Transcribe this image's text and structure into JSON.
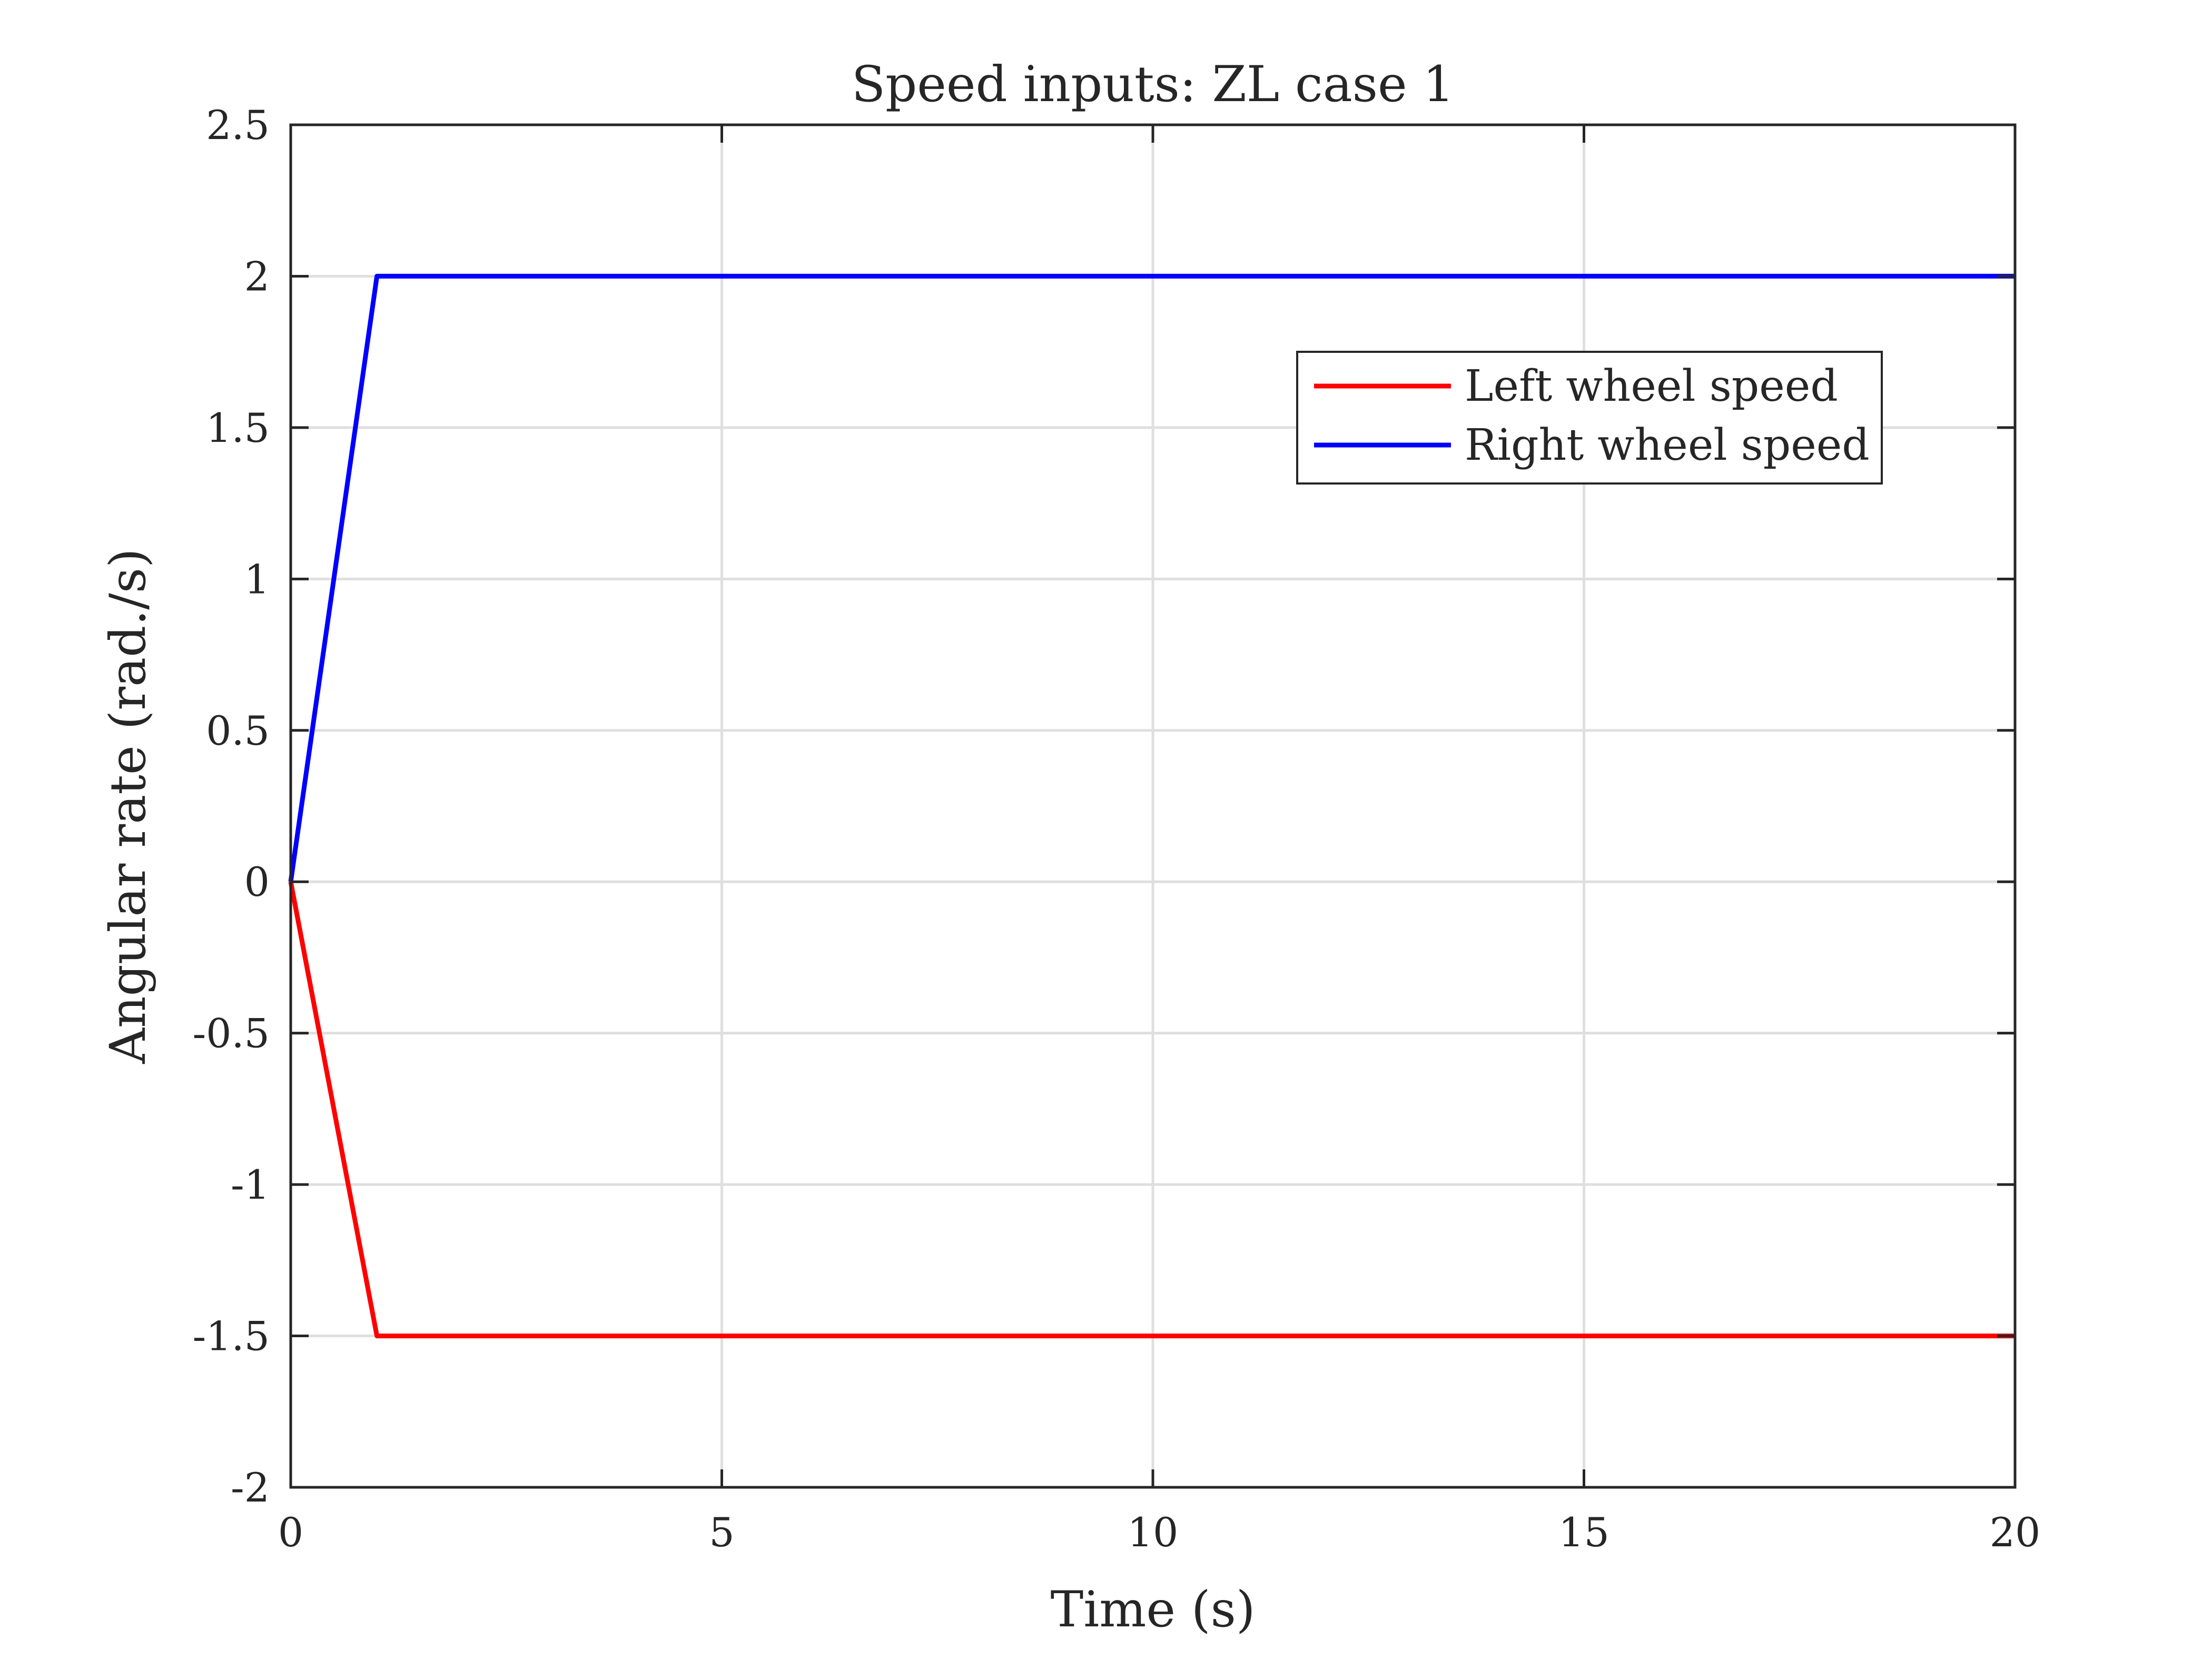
{
  "chart_data": {
    "type": "line",
    "title": "Speed inputs: ZL case 1",
    "xlabel": "Time (s)",
    "ylabel": "Angular rate (rad./s)",
    "xlim": [
      0,
      20
    ],
    "ylim": [
      -2,
      2.5
    ],
    "xticks": [
      0,
      5,
      10,
      15,
      20
    ],
    "xtick_labels": [
      "0",
      "5",
      "10",
      "15",
      "20"
    ],
    "yticks": [
      -2,
      -1.5,
      -1,
      -0.5,
      0,
      0.5,
      1,
      1.5,
      2,
      2.5
    ],
    "ytick_labels": [
      "-2",
      "-1.5",
      "-1",
      "-0.5",
      "0",
      "0.5",
      "1",
      "1.5",
      "2",
      "2.5"
    ],
    "grid": true,
    "legend_position": "top-right",
    "series": [
      {
        "name": "Left wheel speed",
        "color": "#ff0000",
        "x": [
          0,
          1,
          20
        ],
        "y": [
          0,
          -1.5,
          -1.5
        ]
      },
      {
        "name": "Right wheel speed",
        "color": "#0000ff",
        "x": [
          0,
          1,
          20
        ],
        "y": [
          0,
          2,
          2
        ]
      }
    ]
  }
}
